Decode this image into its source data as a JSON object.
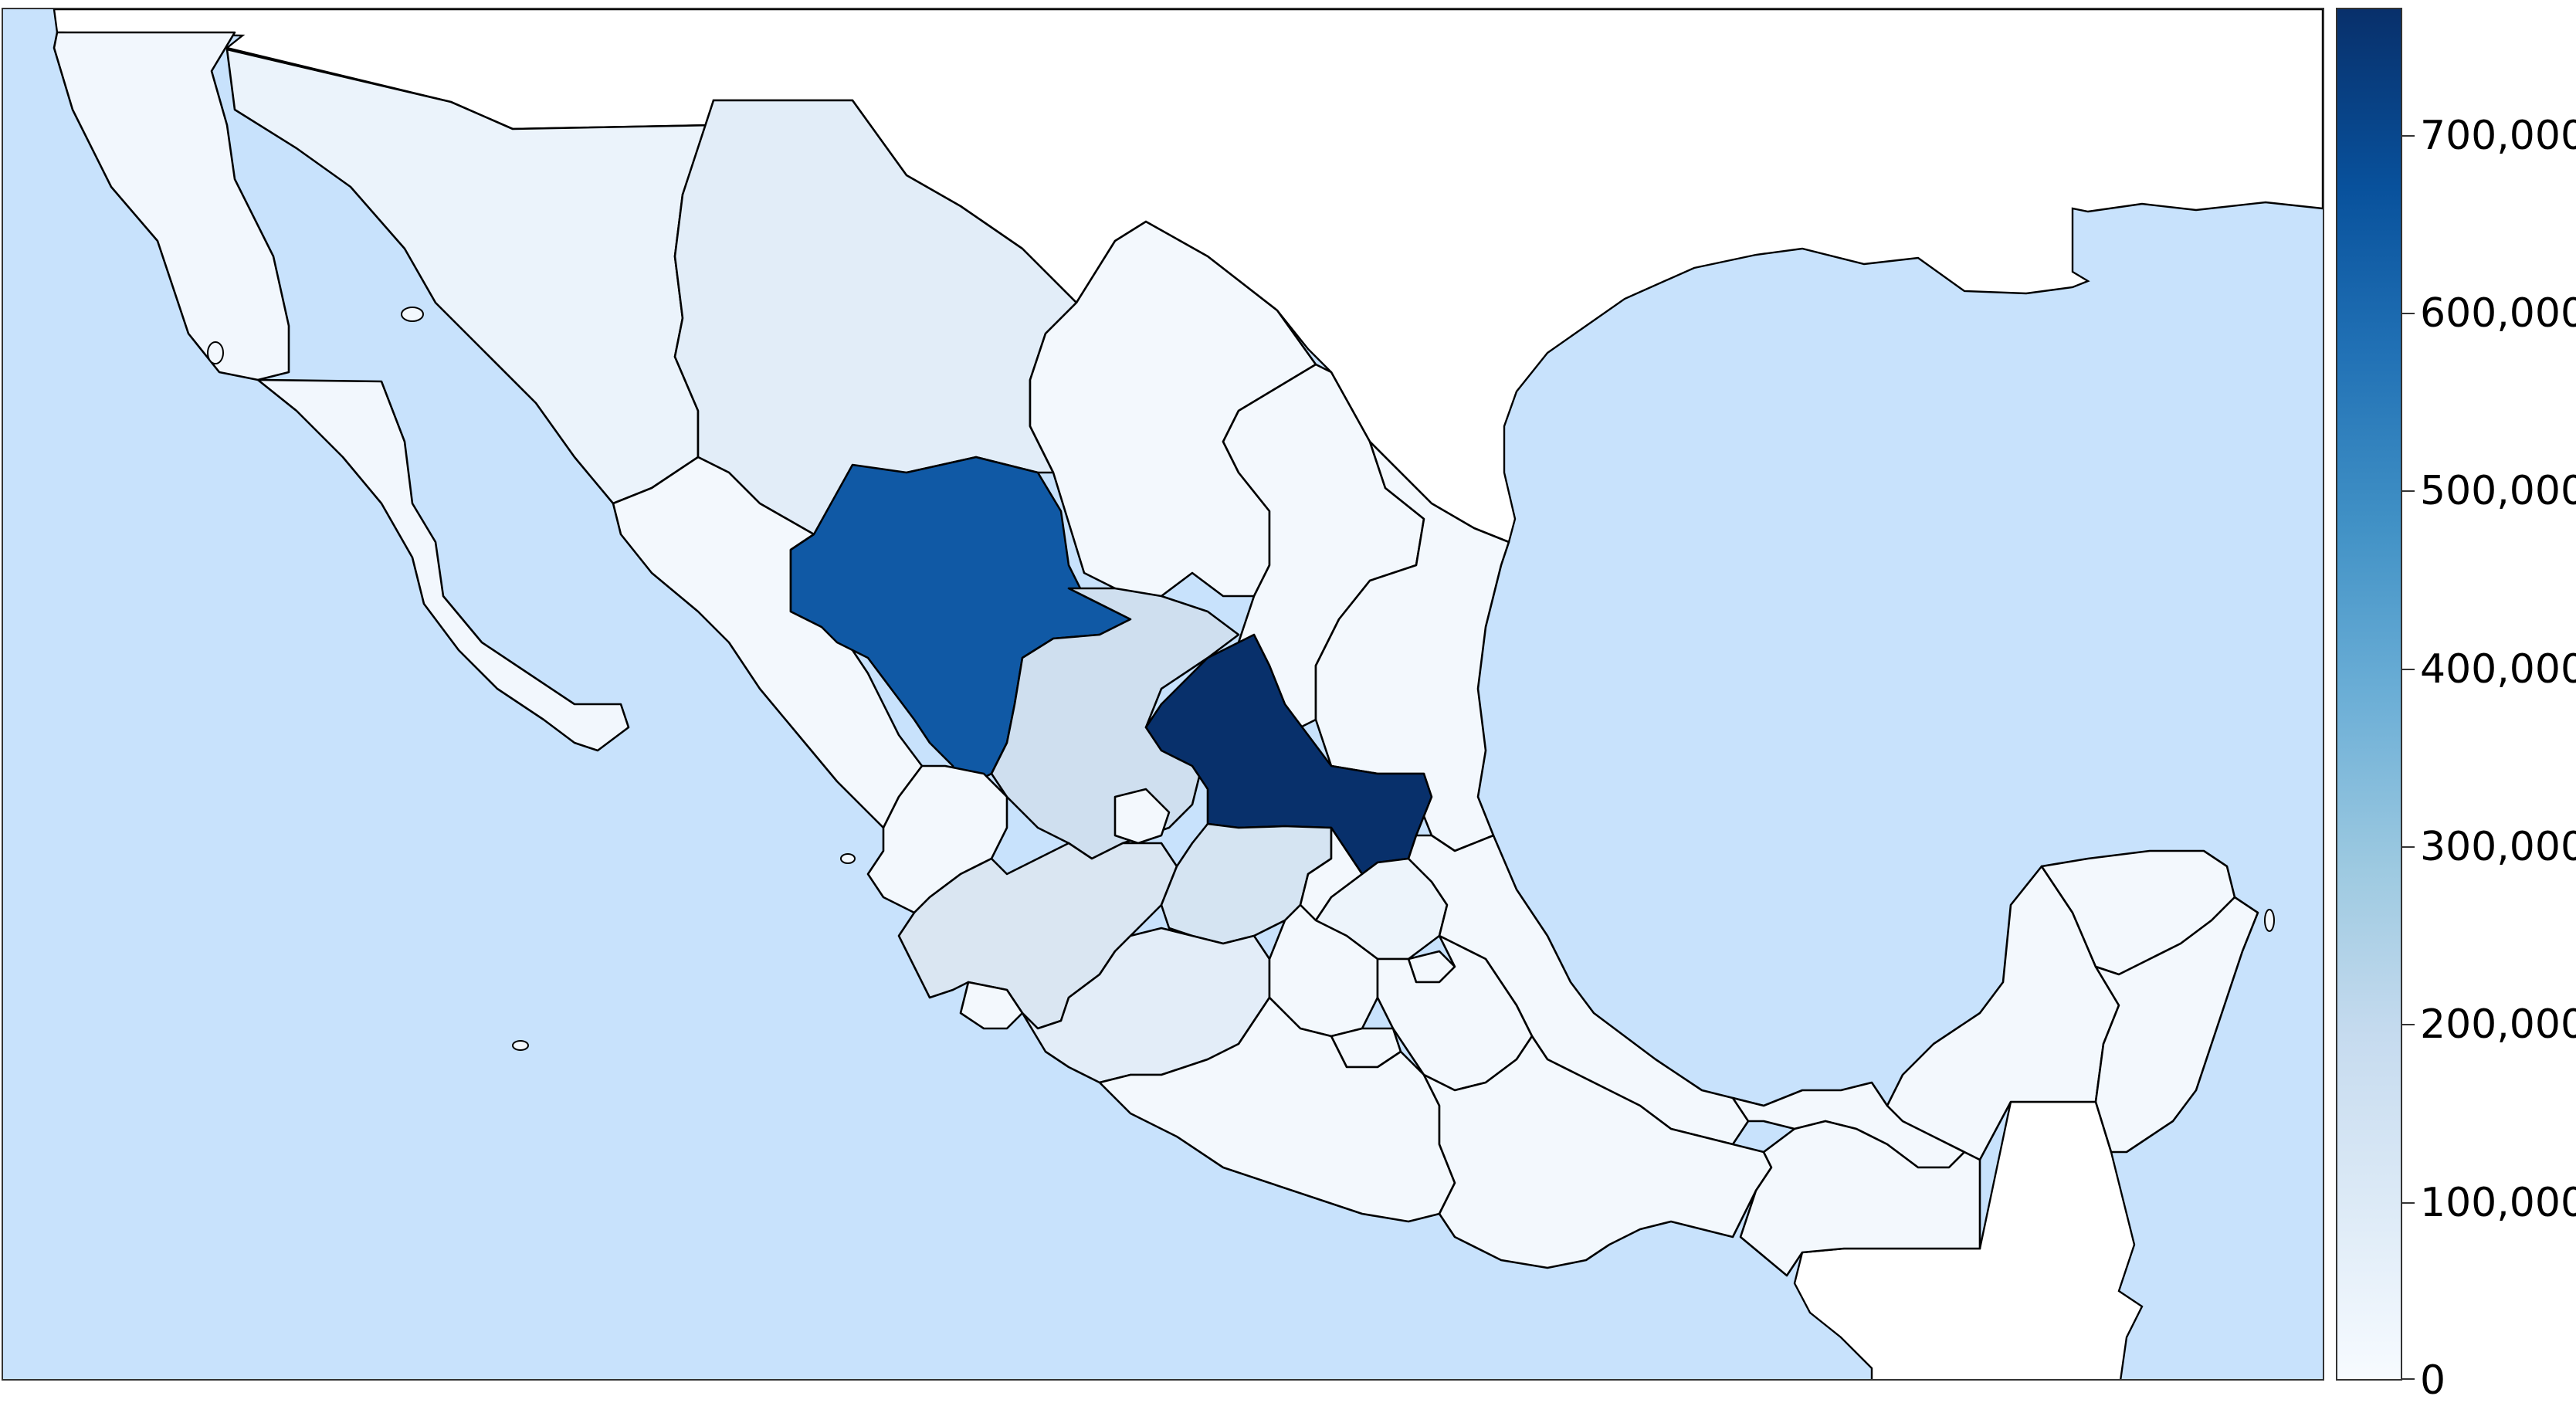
{
  "colorbar": {
    "colors": [
      "#f7fbff",
      "#deebf7",
      "#c6dbef",
      "#9ecae1",
      "#6baed6",
      "#4292c6",
      "#2171b5",
      "#08519c",
      "#08306b"
    ],
    "min": 0,
    "max": 772000,
    "ticks": [
      {
        "value": 0,
        "label": "0"
      },
      {
        "value": 100000,
        "label": "100,000"
      },
      {
        "value": 200000,
        "label": "200,000"
      },
      {
        "value": 300000,
        "label": "300,000"
      },
      {
        "value": 400000,
        "label": "400,000"
      },
      {
        "value": 500000,
        "label": "500,000"
      },
      {
        "value": 600000,
        "label": "600,000"
      },
      {
        "value": 700000,
        "label": "700,000"
      }
    ]
  },
  "map": {
    "water_color": "#c8e2fc",
    "outside_land_color": "#ffffff",
    "regions": [
      {
        "id": "baja-california",
        "value": 10000
      },
      {
        "id": "baja-california-sur",
        "value": 15000
      },
      {
        "id": "sonora",
        "value": 40000
      },
      {
        "id": "chihuahua",
        "value": 80000
      },
      {
        "id": "coahuila",
        "value": 30000
      },
      {
        "id": "nuevo-leon",
        "value": 20000
      },
      {
        "id": "tamaulipas",
        "value": 20000
      },
      {
        "id": "sinaloa",
        "value": 10000
      },
      {
        "id": "durango",
        "value": 620000
      },
      {
        "id": "zacatecas",
        "value": 140000
      },
      {
        "id": "san-luis-potosi",
        "value": 772000
      },
      {
        "id": "nayarit",
        "value": 20000
      },
      {
        "id": "aguascalientes",
        "value": 30000
      },
      {
        "id": "jalisco",
        "value": 90000
      },
      {
        "id": "guanajuato",
        "value": 110000
      },
      {
        "id": "queretaro",
        "value": 40000
      },
      {
        "id": "hidalgo",
        "value": 50000
      },
      {
        "id": "veracruz",
        "value": 20000
      },
      {
        "id": "colima",
        "value": 30000
      },
      {
        "id": "michoacan",
        "value": 70000
      },
      {
        "id": "mexico",
        "value": 20000
      },
      {
        "id": "tlaxcala",
        "value": 10000
      },
      {
        "id": "puebla",
        "value": 10000
      },
      {
        "id": "morelos",
        "value": 10000
      },
      {
        "id": "guerrero",
        "value": 5000
      },
      {
        "id": "oaxaca",
        "value": 5000
      },
      {
        "id": "tabasco",
        "value": 5000
      },
      {
        "id": "chiapas",
        "value": 10000
      },
      {
        "id": "campeche",
        "value": 10000
      },
      {
        "id": "yucatan",
        "value": 10000
      },
      {
        "id": "quintana-roo",
        "value": 15000
      }
    ]
  }
}
